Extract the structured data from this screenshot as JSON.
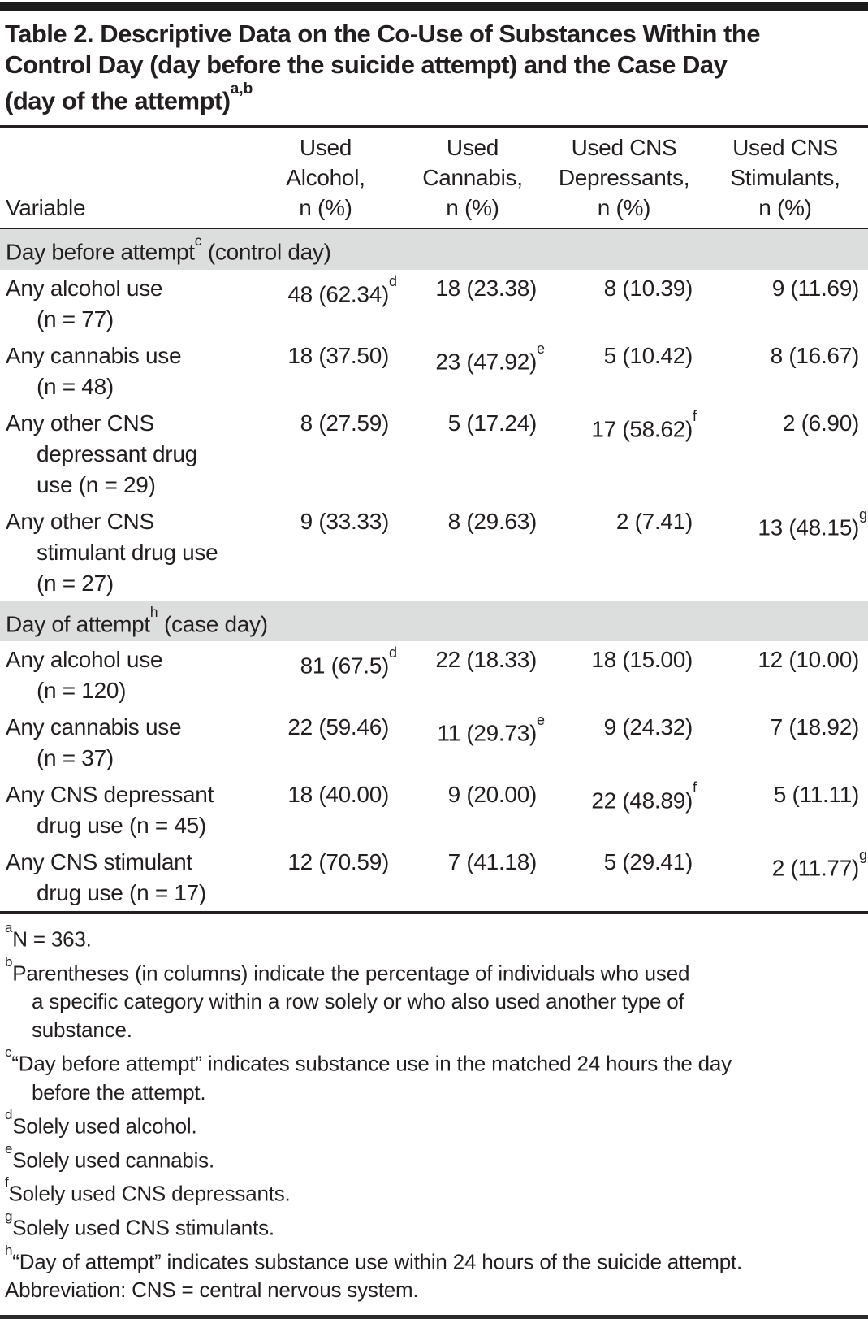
{
  "title": {
    "text": "Table 2. Descriptive Data on the Co-Use of Substances Within the\nControl Day (day before the suicide attempt) and the Case Day\n(day of the attempt)",
    "sup": "a,b"
  },
  "columns": {
    "variable": "Variable",
    "headers": [
      "Used\nAlcohol,\nn (%)",
      "Used\nCannabis,\nn (%)",
      "Used CNS\nDepressants,\nn (%)",
      "Used CNS\nStimulants,\nn (%)"
    ]
  },
  "sections": [
    {
      "label": {
        "pre": "Day before attempt",
        "sup": "c",
        "post": " (control day)"
      },
      "rows": [
        {
          "variable": "Any alcohol use\n(n = 77)",
          "values": [
            {
              "v": "48 (62.34)",
              "s": "d"
            },
            {
              "v": "18 (23.38)",
              "s": ""
            },
            {
              "v": "8 (10.39)",
              "s": ""
            },
            {
              "v": "9 (11.69)",
              "s": ""
            }
          ]
        },
        {
          "variable": "Any cannabis use\n(n = 48)",
          "values": [
            {
              "v": "18 (37.50)",
              "s": ""
            },
            {
              "v": "23 (47.92)",
              "s": "e"
            },
            {
              "v": "5 (10.42)",
              "s": ""
            },
            {
              "v": "8 (16.67)",
              "s": ""
            }
          ]
        },
        {
          "variable": "Any other CNS\ndepressant drug\nuse (n = 29)",
          "values": [
            {
              "v": "8 (27.59)",
              "s": ""
            },
            {
              "v": "5 (17.24)",
              "s": ""
            },
            {
              "v": "17 (58.62)",
              "s": "f"
            },
            {
              "v": "2 (6.90)",
              "s": ""
            }
          ]
        },
        {
          "variable": "Any other CNS\nstimulant drug use\n(n = 27)",
          "values": [
            {
              "v": "9 (33.33)",
              "s": ""
            },
            {
              "v": "8 (29.63)",
              "s": ""
            },
            {
              "v": "2 (7.41)",
              "s": ""
            },
            {
              "v": "13 (48.15)",
              "s": "g"
            }
          ]
        }
      ]
    },
    {
      "label": {
        "pre": "Day of attempt",
        "sup": "h",
        "post": " (case day)"
      },
      "rows": [
        {
          "variable": "Any alcohol use\n(n = 120)",
          "values": [
            {
              "v": "81 (67.5)",
              "s": "d"
            },
            {
              "v": "22 (18.33)",
              "s": ""
            },
            {
              "v": "18 (15.00)",
              "s": ""
            },
            {
              "v": "12 (10.00)",
              "s": ""
            }
          ]
        },
        {
          "variable": "Any cannabis use\n(n = 37)",
          "values": [
            {
              "v": "22 (59.46)",
              "s": ""
            },
            {
              "v": "11 (29.73)",
              "s": "e"
            },
            {
              "v": "9 (24.32)",
              "s": ""
            },
            {
              "v": "7 (18.92)",
              "s": ""
            }
          ]
        },
        {
          "variable": "Any CNS depressant\ndrug use (n = 45)",
          "values": [
            {
              "v": "18 (40.00)",
              "s": ""
            },
            {
              "v": "9 (20.00)",
              "s": ""
            },
            {
              "v": "22 (48.89)",
              "s": "f"
            },
            {
              "v": "5 (11.11)",
              "s": ""
            }
          ]
        },
        {
          "variable": "Any CNS stimulant\ndrug use (n = 17)",
          "values": [
            {
              "v": "12 (70.59)",
              "s": ""
            },
            {
              "v": "7 (41.18)",
              "s": ""
            },
            {
              "v": "5 (29.41)",
              "s": ""
            },
            {
              "v": "2 (11.77)",
              "s": "g"
            }
          ]
        }
      ]
    }
  ],
  "footnotes": [
    {
      "sup": "a",
      "text": "N = 363."
    },
    {
      "sup": "b",
      "text": "Parentheses (in columns) indicate the percentage of individuals who used\na specific category within a row solely or who also used another type of\nsubstance."
    },
    {
      "sup": "c",
      "text": "“Day before attempt” indicates substance use in the matched 24 hours the day\nbefore the attempt."
    },
    {
      "sup": "d",
      "text": "Solely used alcohol."
    },
    {
      "sup": "e",
      "text": "Solely used cannabis."
    },
    {
      "sup": "f",
      "text": "Solely used CNS depressants."
    },
    {
      "sup": "g",
      "text": "Solely used CNS stimulants."
    },
    {
      "sup": "h",
      "text": "“Day of attempt” indicates substance use within 24 hours of the suicide attempt."
    },
    {
      "sup": "",
      "text": "Abbreviation: CNS = central nervous system."
    }
  ],
  "colors": {
    "text": "#231f20",
    "section_band_bg": "#dcdddd",
    "rule": "#231f20",
    "background": "#ffffff"
  }
}
